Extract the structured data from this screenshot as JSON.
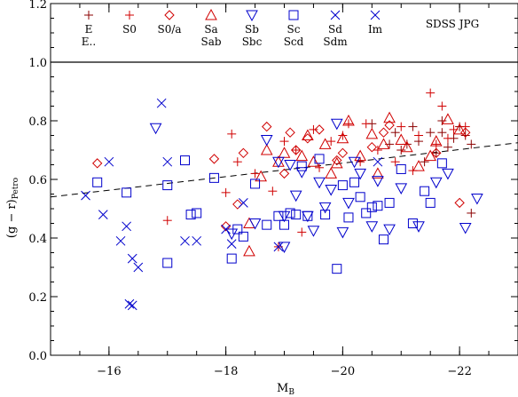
{
  "chart_data": {
    "type": "scatter",
    "xlabel": "M",
    "xlabel_sub": "B",
    "ylabel": "(g − r)",
    "ylabel_sub": "Petro",
    "annotation": "SDSS JPG",
    "xlim": [
      -15.0,
      -23.0
    ],
    "ylim": [
      0.0,
      1.2
    ],
    "x_ticks": [
      -16,
      -18,
      -20,
      -22
    ],
    "y_ticks": [
      0.0,
      0.2,
      0.4,
      0.6,
      0.8,
      1.0,
      1.2
    ],
    "x_tick_labels": [
      "−16",
      "−18",
      "−20",
      "−22"
    ],
    "y_tick_labels": [
      "0.0",
      "0.2",
      "0.4",
      "0.6",
      "0.8",
      "1.0",
      "1.2"
    ],
    "reference_lines": [
      {
        "type": "hline",
        "y": 1.0,
        "style": "solid"
      },
      {
        "type": "line",
        "x": [
          -15.0,
          -23.0
        ],
        "y": [
          0.54,
          0.725
        ],
        "style": "dashed"
      }
    ],
    "legend": [
      {
        "label": "E",
        "label2": "E..",
        "marker": "plus_dark",
        "color": "#8b0000"
      },
      {
        "label": "S0",
        "label2": "",
        "marker": "plus",
        "color": "#d00000"
      },
      {
        "label": "S0/a",
        "label2": "",
        "marker": "diamond",
        "color": "#d00000"
      },
      {
        "label": "Sa",
        "label2": "Sab",
        "marker": "triangle",
        "color": "#d00000"
      },
      {
        "label": "Sb",
        "label2": "Sbc",
        "marker": "tri_down",
        "color": "#0000cc"
      },
      {
        "label": "Sc",
        "label2": "Scd",
        "marker": "square",
        "color": "#0000cc"
      },
      {
        "label": "Sd",
        "label2": "Sdm",
        "marker": "cross",
        "color": "#0000cc"
      },
      {
        "label": "Im",
        "label2": "",
        "marker": "cross",
        "color": "#0000cc"
      }
    ],
    "series": [
      {
        "name": "E",
        "marker": "plus_dark",
        "color": "#8b0000",
        "points": [
          [
            -21.3,
            0.73
          ],
          [
            -21.5,
            0.76
          ],
          [
            -21.7,
            0.8
          ],
          [
            -21.9,
            0.74
          ],
          [
            -21.1,
            0.72
          ],
          [
            -21.6,
            0.69
          ],
          [
            -22.0,
            0.78
          ],
          [
            -22.2,
            0.72
          ],
          [
            -21.2,
            0.78
          ],
          [
            -21.8,
            0.71
          ],
          [
            -21.4,
            0.66
          ],
          [
            -22.1,
            0.75
          ],
          [
            -20.9,
            0.76
          ],
          [
            -20.5,
            0.79
          ],
          [
            -21.0,
            0.7
          ],
          [
            -21.7,
            0.76
          ],
          [
            -22.2,
            0.485
          ],
          [
            -20.8,
            0.72
          ]
        ]
      },
      {
        "name": "S0",
        "marker": "plus",
        "color": "#d00000",
        "points": [
          [
            -18.0,
            0.555
          ],
          [
            -18.2,
            0.66
          ],
          [
            -18.8,
            0.56
          ],
          [
            -19.0,
            0.73
          ],
          [
            -19.2,
            0.7
          ],
          [
            -19.5,
            0.77
          ],
          [
            -20.0,
            0.75
          ],
          [
            -20.3,
            0.66
          ],
          [
            -20.6,
            0.7
          ],
          [
            -21.0,
            0.78
          ],
          [
            -21.3,
            0.75
          ],
          [
            -21.5,
            0.895
          ],
          [
            -21.6,
            0.72
          ],
          [
            -21.8,
            0.74
          ],
          [
            -22.1,
            0.78
          ],
          [
            -17.0,
            0.46
          ],
          [
            -18.9,
            0.37
          ],
          [
            -19.3,
            0.42
          ],
          [
            -20.1,
            0.79
          ],
          [
            -20.9,
            0.66
          ],
          [
            -21.2,
            0.63
          ],
          [
            -21.7,
            0.85
          ],
          [
            -19.6,
            0.64
          ],
          [
            -20.4,
            0.79
          ],
          [
            -18.5,
            0.62
          ],
          [
            -18.1,
            0.755
          ],
          [
            -19.8,
            0.73
          ],
          [
            -21.9,
            0.77
          ]
        ]
      },
      {
        "name": "S0/a",
        "marker": "diamond",
        "color": "#d00000",
        "points": [
          [
            -15.8,
            0.655
          ],
          [
            -17.8,
            0.67
          ],
          [
            -18.3,
            0.69
          ],
          [
            -18.7,
            0.78
          ],
          [
            -19.1,
            0.76
          ],
          [
            -19.2,
            0.7
          ],
          [
            -19.4,
            0.74
          ],
          [
            -19.6,
            0.77
          ],
          [
            -20.0,
            0.69
          ],
          [
            -20.5,
            0.71
          ],
          [
            -20.7,
            0.76
          ],
          [
            -21.6,
            0.69
          ],
          [
            -22.0,
            0.52
          ],
          [
            -18.0,
            0.44
          ],
          [
            -18.2,
            0.515
          ],
          [
            -19.0,
            0.62
          ],
          [
            -20.8,
            0.785
          ],
          [
            -22.1,
            0.76
          ],
          [
            -19.9,
            0.665
          ]
        ]
      },
      {
        "name": "Sa/Sab",
        "marker": "triangle",
        "color": "#d00000",
        "points": [
          [
            -18.4,
            0.45
          ],
          [
            -18.4,
            0.355
          ],
          [
            -18.6,
            0.61
          ],
          [
            -18.9,
            0.66
          ],
          [
            -19.0,
            0.69
          ],
          [
            -19.3,
            0.68
          ],
          [
            -19.4,
            0.75
          ],
          [
            -19.7,
            0.72
          ],
          [
            -19.8,
            0.62
          ],
          [
            -20.0,
            0.74
          ],
          [
            -20.1,
            0.8
          ],
          [
            -20.3,
            0.68
          ],
          [
            -20.5,
            0.755
          ],
          [
            -20.8,
            0.81
          ],
          [
            -21.0,
            0.735
          ],
          [
            -21.1,
            0.71
          ],
          [
            -21.3,
            0.645
          ],
          [
            -21.5,
            0.68
          ],
          [
            -21.6,
            0.73
          ],
          [
            -21.8,
            0.805
          ],
          [
            -22.0,
            0.77
          ],
          [
            -19.9,
            0.655
          ],
          [
            -20.6,
            0.62
          ],
          [
            -20.7,
            0.72
          ],
          [
            -19.5,
            0.66
          ],
          [
            -18.7,
            0.7
          ]
        ]
      },
      {
        "name": "Sb/Sbc",
        "marker": "tri_down",
        "color": "#0000cc",
        "points": [
          [
            -16.8,
            0.775
          ],
          [
            -18.1,
            0.415
          ],
          [
            -18.5,
            0.45
          ],
          [
            -18.7,
            0.735
          ],
          [
            -18.9,
            0.66
          ],
          [
            -19.0,
            0.475
          ],
          [
            -19.1,
            0.65
          ],
          [
            -19.2,
            0.545
          ],
          [
            -19.3,
            0.625
          ],
          [
            -19.4,
            0.475
          ],
          [
            -19.5,
            0.425
          ],
          [
            -19.6,
            0.59
          ],
          [
            -19.8,
            0.565
          ],
          [
            -19.9,
            0.79
          ],
          [
            -20.0,
            0.42
          ],
          [
            -20.1,
            0.52
          ],
          [
            -20.2,
            0.66
          ],
          [
            -20.5,
            0.44
          ],
          [
            -20.8,
            0.43
          ],
          [
            -21.0,
            0.57
          ],
          [
            -21.3,
            0.44
          ],
          [
            -21.6,
            0.59
          ],
          [
            -21.8,
            0.62
          ],
          [
            -22.1,
            0.435
          ],
          [
            -22.3,
            0.535
          ],
          [
            -19.7,
            0.505
          ],
          [
            -20.6,
            0.595
          ],
          [
            -19.0,
            0.37
          ],
          [
            -20.3,
            0.62
          ]
        ]
      },
      {
        "name": "Sc/Scd",
        "marker": "square",
        "color": "#0000cc",
        "points": [
          [
            -15.8,
            0.59
          ],
          [
            -16.3,
            0.555
          ],
          [
            -17.0,
            0.58
          ],
          [
            -17.0,
            0.315
          ],
          [
            -17.3,
            0.665
          ],
          [
            -17.4,
            0.48
          ],
          [
            -17.5,
            0.485
          ],
          [
            -17.8,
            0.605
          ],
          [
            -18.1,
            0.33
          ],
          [
            -18.3,
            0.405
          ],
          [
            -18.5,
            0.585
          ],
          [
            -18.7,
            0.445
          ],
          [
            -18.9,
            0.475
          ],
          [
            -19.0,
            0.445
          ],
          [
            -19.1,
            0.485
          ],
          [
            -19.2,
            0.48
          ],
          [
            -19.3,
            0.645
          ],
          [
            -19.4,
            0.475
          ],
          [
            -19.7,
            0.48
          ],
          [
            -19.9,
            0.295
          ],
          [
            -20.0,
            0.58
          ],
          [
            -20.1,
            0.47
          ],
          [
            -20.2,
            0.59
          ],
          [
            -20.3,
            0.54
          ],
          [
            -20.4,
            0.485
          ],
          [
            -20.6,
            0.51
          ],
          [
            -20.7,
            0.395
          ],
          [
            -20.8,
            0.52
          ],
          [
            -21.0,
            0.635
          ],
          [
            -21.2,
            0.45
          ],
          [
            -21.5,
            0.52
          ],
          [
            -21.7,
            0.655
          ],
          [
            -21.4,
            0.56
          ],
          [
            -19.6,
            0.67
          ],
          [
            -20.5,
            0.505
          ],
          [
            -18.2,
            0.43
          ]
        ]
      },
      {
        "name": "Sd/Sdm",
        "marker": "cross",
        "color": "#0000cc",
        "points": [
          [
            -15.6,
            0.545
          ],
          [
            -15.9,
            0.48
          ],
          [
            -16.0,
            0.66
          ],
          [
            -16.2,
            0.39
          ],
          [
            -16.3,
            0.44
          ],
          [
            -16.4,
            0.33
          ],
          [
            -16.5,
            0.3
          ],
          [
            -16.4,
            0.17
          ],
          [
            -16.35,
            0.175
          ],
          [
            -16.9,
            0.86
          ],
          [
            -17.0,
            0.66
          ],
          [
            -17.3,
            0.39
          ],
          [
            -17.5,
            0.39
          ],
          [
            -18.0,
            0.43
          ],
          [
            -18.1,
            0.38
          ],
          [
            -18.3,
            0.52
          ],
          [
            -18.9,
            0.37
          ],
          [
            -20.6,
            0.66
          ]
        ]
      }
    ]
  }
}
